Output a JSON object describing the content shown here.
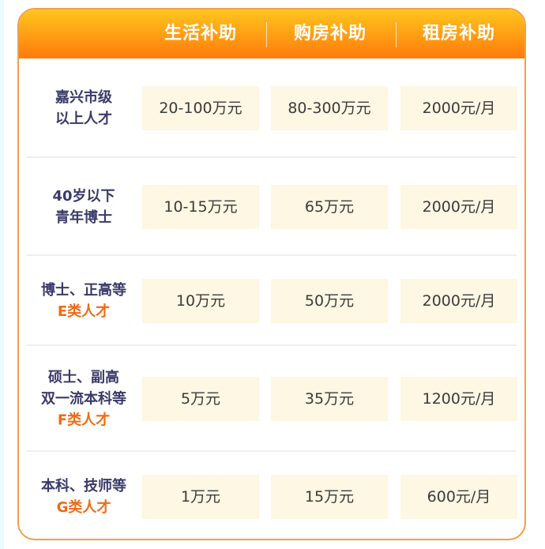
{
  "header": {
    "columns": [
      "生活补助",
      "购房补助",
      "租房补助"
    ]
  },
  "colors": {
    "header_top": "#ffc61e",
    "header_bottom": "#ff7a0c",
    "border": "#f0a04a",
    "cell_bg": "#fdf7e3",
    "class_text": "#f06a14",
    "label_text": "#3a3a6a"
  },
  "rows": [
    {
      "label_lines": [
        "嘉兴市级",
        "以上人才"
      ],
      "class": "",
      "values": [
        "20-100万元",
        "80-300万元",
        "2000元/月"
      ]
    },
    {
      "label_lines": [
        "40岁以下",
        "青年博士"
      ],
      "class": "",
      "values": [
        "10-15万元",
        "65万元",
        "2000元/月"
      ]
    },
    {
      "label_lines": [
        "博士、正高等"
      ],
      "class": "E类人才",
      "values": [
        "10万元",
        "50万元",
        "2000元/月"
      ]
    },
    {
      "label_lines": [
        "硕士、副高",
        "双一流本科等"
      ],
      "class": "F类人才",
      "values": [
        "5万元",
        "35万元",
        "1200元/月"
      ]
    },
    {
      "label_lines": [
        "本科、技师等"
      ],
      "class": "G类人才",
      "values": [
        "1万元",
        "15万元",
        "600元/月"
      ]
    }
  ]
}
